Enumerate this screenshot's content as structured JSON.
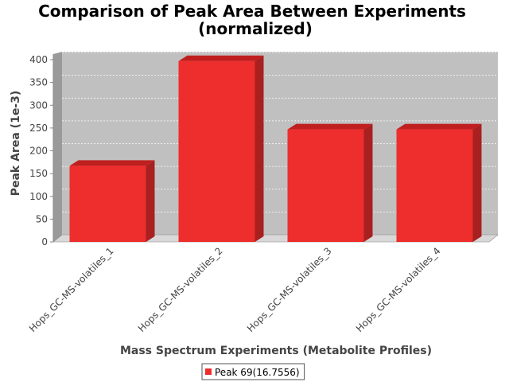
{
  "chart_data": {
    "type": "bar",
    "title": "Comparison of Peak Area Between Experiments",
    "subtitle": "(normalized)",
    "xlabel": "Mass Spectrum Experiments (Metabolite Profiles)",
    "ylabel": "Peak Area (1e-3)",
    "categories": [
      "Hops_GC-MS-volatiles_1",
      "Hops_GC-MS-volatiles_2",
      "Hops_GC-MS-volatiles_3",
      "Hops_GC-MS-volatiles_4"
    ],
    "series": [
      {
        "name": "Peak 69(16.7556)",
        "values": [
          167,
          397,
          247,
          247
        ]
      }
    ],
    "ylim": [
      0,
      400
    ],
    "yticks": [
      "0",
      "50",
      "100",
      "150",
      "200",
      "250",
      "300",
      "350",
      "400"
    ],
    "grid": true,
    "legend_position": "bottom-center",
    "colors": {
      "bar_front": "#ee2d2d",
      "bar_top": "#c01f1f",
      "bar_side": "#a82020",
      "plot_back": "#c0c0c0",
      "plot_side": "#9a9a9a",
      "plot_floor": "#d8d8d8",
      "gridline": "#ffffff"
    }
  }
}
